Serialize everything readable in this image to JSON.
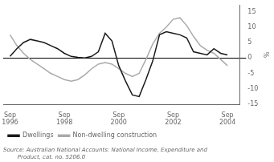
{
  "chart_data": {
    "type": "line",
    "ylabel": "%",
    "x": [
      1996.75,
      1997.0,
      1997.25,
      1997.5,
      1997.75,
      1998.0,
      1998.25,
      1998.5,
      1998.75,
      1999.0,
      1999.25,
      1999.5,
      1999.75,
      2000.0,
      2000.25,
      2000.5,
      2000.75,
      2001.0,
      2001.25,
      2001.5,
      2001.75,
      2002.0,
      2002.25,
      2002.5,
      2002.75,
      2003.0,
      2003.25,
      2003.5,
      2003.75,
      2004.0,
      2004.25,
      2004.5,
      2004.75
    ],
    "series": [
      {
        "name": "Dwellings",
        "color": "#1a1a1a",
        "values": [
          0.5,
          3.0,
          5.0,
          6.0,
          5.5,
          5.0,
          4.0,
          3.0,
          1.5,
          0.5,
          0.2,
          0.0,
          0.5,
          2.0,
          8.0,
          5.5,
          -2.5,
          -7.5,
          -12.0,
          -12.5,
          -7.0,
          -1.0,
          7.5,
          8.5,
          8.0,
          7.5,
          6.5,
          2.0,
          1.5,
          1.0,
          3.0,
          1.5,
          1.0
        ]
      },
      {
        "name": "Non-dwelling construction",
        "color": "#aaaaaa",
        "values": [
          7.5,
          4.0,
          1.5,
          -0.5,
          -2.0,
          -3.5,
          -5.0,
          -6.0,
          -7.0,
          -7.5,
          -7.0,
          -5.5,
          -3.5,
          -2.0,
          -1.5,
          -2.0,
          -3.5,
          -5.0,
          -6.0,
          -5.0,
          -0.5,
          4.5,
          8.0,
          10.0,
          12.5,
          13.0,
          10.5,
          7.0,
          4.0,
          2.5,
          1.5,
          -0.5,
          -2.5
        ]
      }
    ],
    "xlim": [
      1996.5,
      2005.2
    ],
    "xticks": [
      {
        "value": 1996.75,
        "label": "Sep\n1996"
      },
      {
        "value": 1998.75,
        "label": "Sep\n1998"
      },
      {
        "value": 2000.75,
        "label": "Sep\n2000"
      },
      {
        "value": 2002.75,
        "label": "Sep\n2002"
      },
      {
        "value": 2004.75,
        "label": "Sep\n2004"
      }
    ],
    "ylim": [
      -15,
      17
    ],
    "yticks": [
      -15,
      -10,
      -5,
      0,
      5,
      10,
      15
    ],
    "grid": false,
    "legend": "lower left",
    "annotations": [
      "Source: Australian National Accounts: National Income, Expenditure and",
      "        Product, cat. no. 5206.0"
    ]
  }
}
